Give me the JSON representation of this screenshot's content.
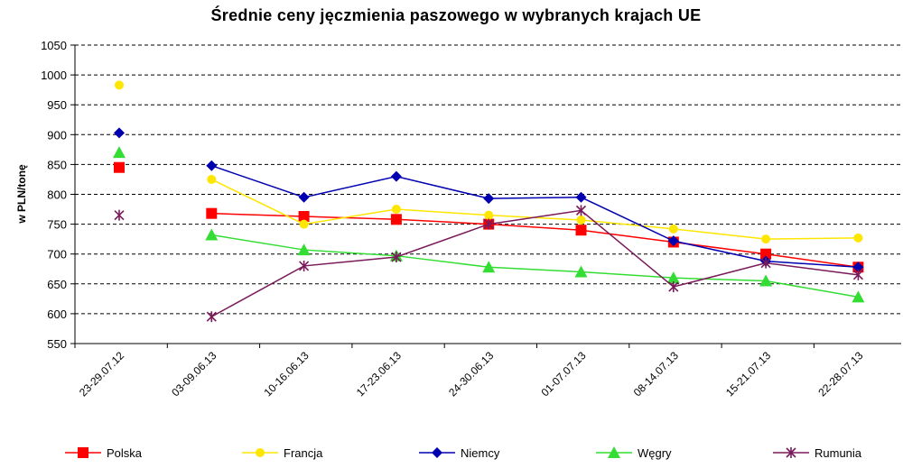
{
  "chart_data": {
    "type": "line",
    "title": "Średnie ceny jęczmienia paszowego w wybranych krajach UE",
    "xlabel": "",
    "ylabel": "w PLN/tonę",
    "ylim": [
      550,
      1050
    ],
    "yticks": [
      550,
      600,
      650,
      700,
      750,
      800,
      850,
      900,
      950,
      1000,
      1050
    ],
    "grid": "horizontal-dashed",
    "legend_position": "bottom",
    "categories": [
      "23-29.07.12",
      "03-09.06.13",
      "10-16.06.13",
      "17-23.06.13",
      "24-30.06.13",
      "01-07.07.13",
      "08-14.07.13",
      "15-21.07.13",
      "22-28.07.13"
    ],
    "series": [
      {
        "name": "Polska",
        "color": "#ff0000",
        "marker": "square",
        "values": [
          845,
          768,
          763,
          758,
          750,
          740,
          720,
          700,
          678
        ]
      },
      {
        "name": "Francja",
        "color": "#ffe600",
        "marker": "circle",
        "values": [
          983,
          825,
          750,
          775,
          765,
          757,
          742,
          725,
          727
        ]
      },
      {
        "name": "Niemcy",
        "color": "#0000b0",
        "marker": "diamond",
        "values": [
          903,
          848,
          795,
          830,
          793,
          795,
          722,
          688,
          678
        ]
      },
      {
        "name": "Węgry",
        "color": "#33dd33",
        "marker": "triangle",
        "values": [
          870,
          732,
          707,
          697,
          678,
          670,
          660,
          655,
          628
        ]
      },
      {
        "name": "Rumunia",
        "color": "#7a1a5a",
        "marker": "star",
        "values": [
          765,
          595,
          680,
          695,
          750,
          773,
          645,
          685,
          665
        ]
      }
    ]
  }
}
